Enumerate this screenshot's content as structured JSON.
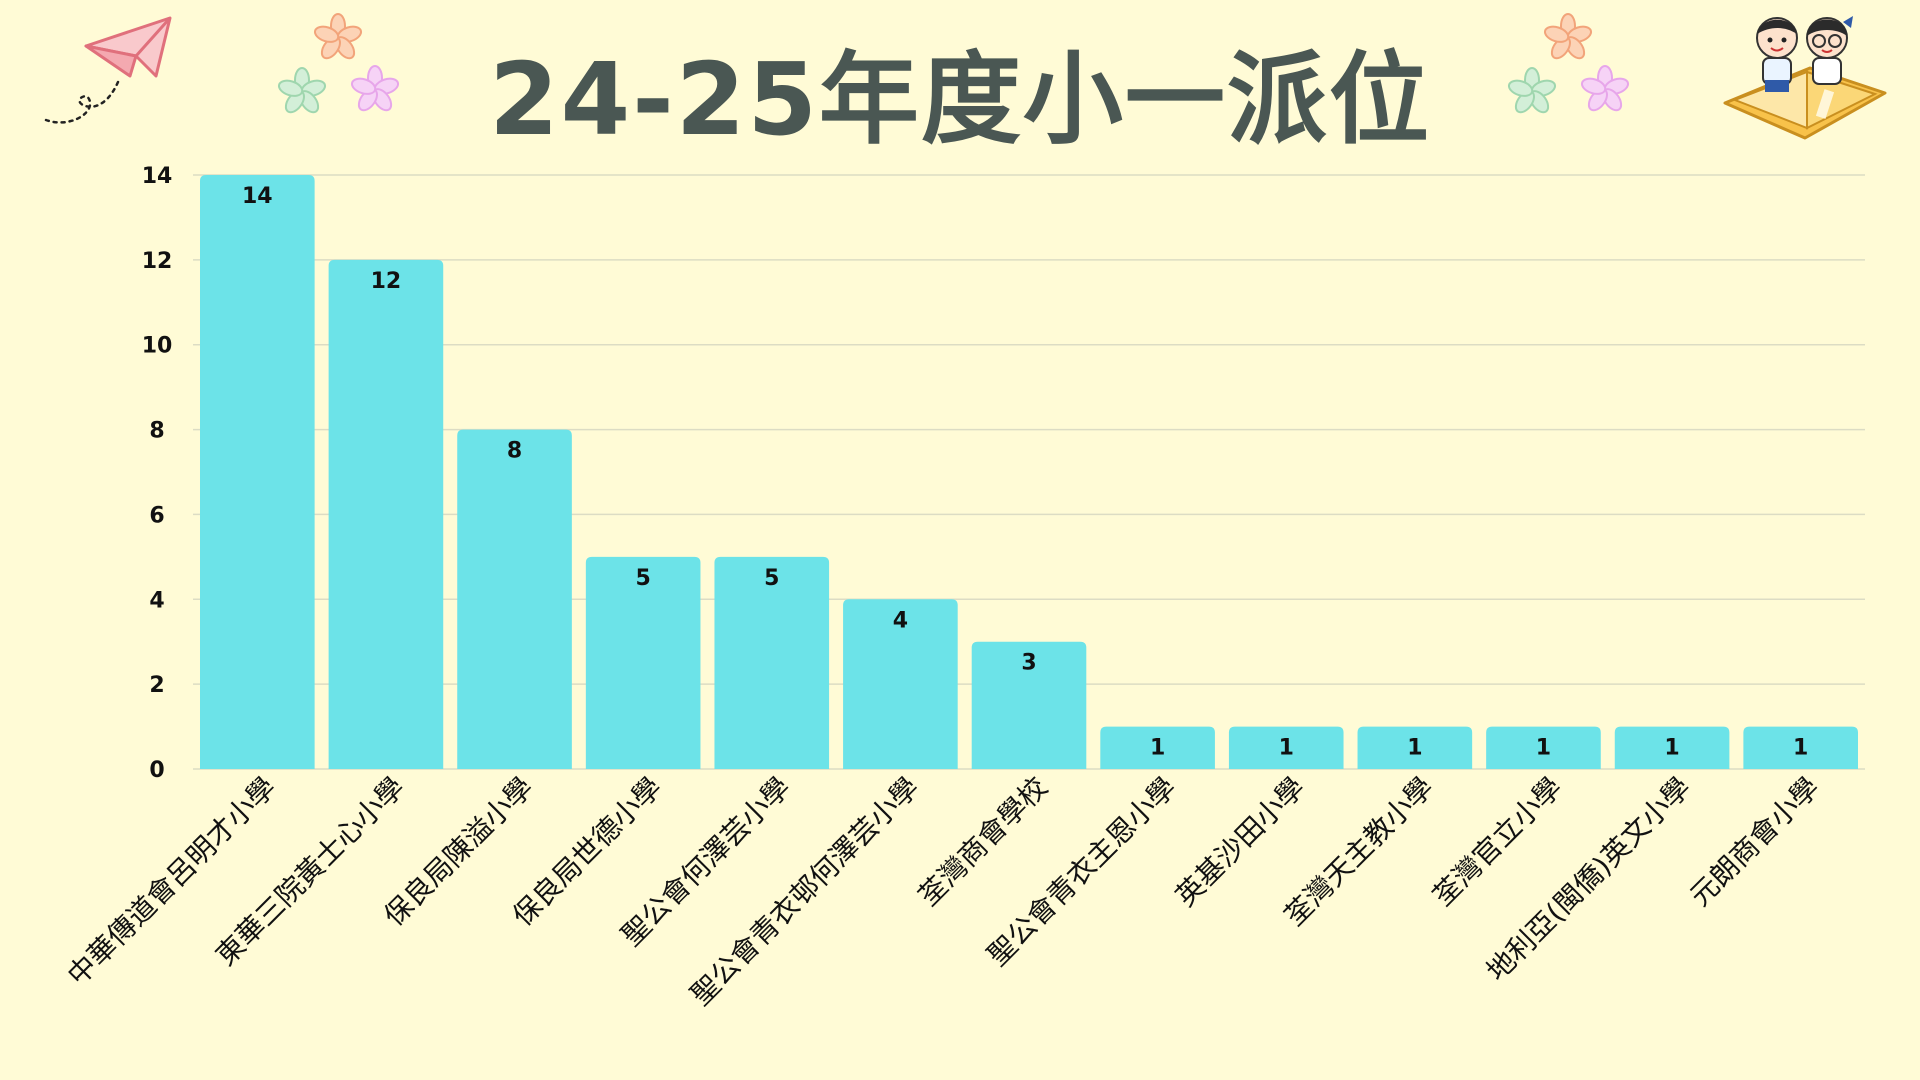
{
  "title": "24-25年度小一派位",
  "colors": {
    "background": "#fffbd6",
    "bar": "#6ce3e8",
    "grid": "#dcdcc4",
    "text": "#111111",
    "title": "#4a5753"
  },
  "decorations": [
    "paper-plane-icon",
    "flower-icon",
    "children-reading-book-icon"
  ],
  "chart_data": {
    "type": "bar",
    "title": "24-25年度小一派位",
    "categories": [
      "中華傳道會呂明才小學",
      "東華三院黃士心小學",
      "保良局陳溢小學",
      "保良局世德小學",
      "聖公會何澤芸小學",
      "聖公會青衣邨何澤芸小學",
      "荃灣商會學校",
      "聖公會青衣主恩小學",
      "英基沙田小學",
      "荃灣天主教小學",
      "荃灣官立小學",
      "地利亞(閩僑)英文小學",
      "元朗商會小學"
    ],
    "values": [
      14,
      12,
      8,
      5,
      5,
      4,
      3,
      1,
      1,
      1,
      1,
      1,
      1
    ],
    "yticks": [
      0,
      2,
      4,
      6,
      8,
      10,
      12,
      14
    ],
    "ylim": [
      0,
      14
    ],
    "xlabel": "",
    "ylabel": "",
    "grid": true,
    "data_labels": true,
    "legend": "none"
  }
}
